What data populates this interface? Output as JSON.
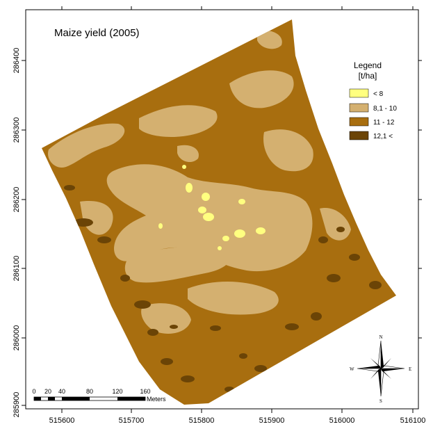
{
  "title": "Maize yield (2005)",
  "legend": {
    "title_line1": "Legend",
    "title_line2": "[t/ha]",
    "classes": [
      {
        "label": "< 8",
        "color": "#ffff80"
      },
      {
        "label": "8,1 - 10",
        "color": "#d4b070"
      },
      {
        "label": "11 - 12",
        "color": "#a86e0f"
      },
      {
        "label": "12,1 <",
        "color": "#6b4406"
      }
    ]
  },
  "x_ticks": [
    "515600",
    "515700",
    "515800",
    "515900",
    "516000",
    "516100"
  ],
  "y_ticks": [
    "286400",
    "286300",
    "286200",
    "286100",
    "286000",
    "285900"
  ],
  "scale_bar": {
    "labels": [
      "0",
      "20",
      "40",
      "80",
      "120",
      "160"
    ],
    "unit": "Meters"
  },
  "compass": {
    "n": "N",
    "s": "S",
    "e": "E",
    "w": "W"
  },
  "colors": {
    "field_base": "#a86e0f",
    "light_zone": "#d4b070",
    "dark_patch": "#6b4406",
    "low_yield": "#ffff80"
  }
}
